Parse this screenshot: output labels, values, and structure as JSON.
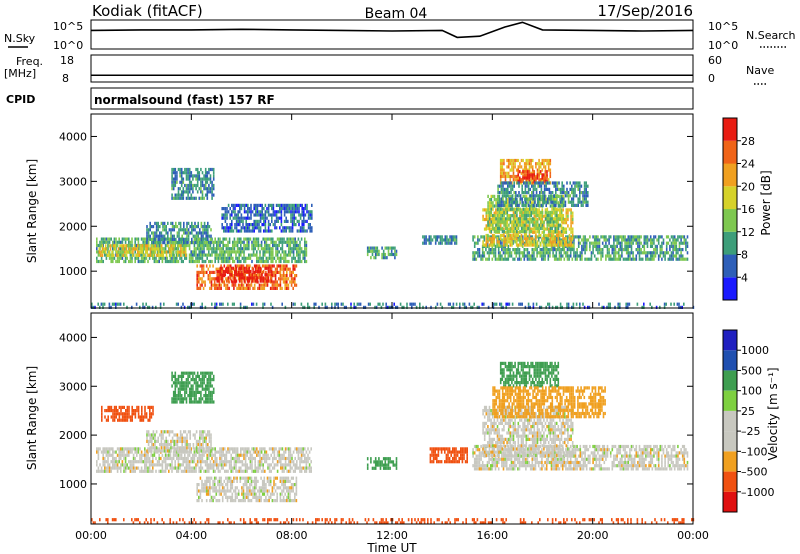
{
  "header": {
    "station": "Kodiak (fitACF)",
    "beam": "Beam 04",
    "date": "17/Sep/2016"
  },
  "summary": {
    "nsky_label": "N.Sky",
    "nsky_ticks": [
      "10^5",
      "10^0"
    ],
    "nsearch_label": "N.Search",
    "nsearch_ticks": [
      "10^5",
      "10^0"
    ],
    "freq_label": "Freq.",
    "freq_unit": "[MHz]",
    "freq_ticks": [
      "18",
      "8"
    ],
    "nave_label": "Nave",
    "nave_ticks": [
      "60",
      "0"
    ],
    "cpid_label": "CPID",
    "cpid_value": "normalsound (fast) 157 RF"
  },
  "colors": {
    "power_scale": [
      "#1a1aff",
      "#2e5fb8",
      "#3d9e7a",
      "#7ec850",
      "#d6d22a",
      "#f0a020",
      "#f06418",
      "#e81c12"
    ],
    "velocity_scale": [
      "#e01010",
      "#f05010",
      "#f0a020",
      "#c8c8c0",
      "#c8c8c0",
      "#7ed040",
      "#3e9e50",
      "#2050b0",
      "#2020c0"
    ]
  },
  "chart_data": [
    {
      "type": "heatmap",
      "name": "power",
      "ylabel": "Slant Range [km]",
      "xlabel": "Time UT",
      "x_ticks": [
        "00:00",
        "04:00",
        "08:00",
        "12:00",
        "16:00",
        "20:00",
        "00:00"
      ],
      "y_ticks": [
        "1000",
        "2000",
        "3000",
        "4000"
      ],
      "ylim": [
        180,
        4500
      ],
      "xlim_hours": [
        0,
        24
      ],
      "colorbar_label": "Power [dB]",
      "colorbar_ticks": [
        "4",
        "8",
        "12",
        "16",
        "20",
        "24",
        "28"
      ],
      "colorbar_range": [
        0,
        30
      ],
      "regions": [
        {
          "t0": 0.2,
          "t1": 8.6,
          "r0": 1250,
          "r1": 1750,
          "value": 11
        },
        {
          "t0": 0.3,
          "t1": 3.8,
          "r0": 1380,
          "r1": 1600,
          "value": 17
        },
        {
          "t0": 2.2,
          "t1": 4.8,
          "r0": 1650,
          "r1": 2100,
          "value": 9
        },
        {
          "t0": 3.2,
          "t1": 4.9,
          "r0": 2600,
          "r1": 3300,
          "value": 8
        },
        {
          "t0": 5.2,
          "t1": 8.8,
          "r0": 1900,
          "r1": 2500,
          "value": 6
        },
        {
          "t0": 4.2,
          "t1": 8.2,
          "r0": 650,
          "r1": 1150,
          "value": 24
        },
        {
          "t0": 5.0,
          "t1": 7.2,
          "r0": 750,
          "r1": 1100,
          "value": 28
        },
        {
          "t0": 11.0,
          "t1": 12.2,
          "r0": 1300,
          "r1": 1550,
          "value": 10
        },
        {
          "t0": 13.2,
          "t1": 14.6,
          "r0": 1600,
          "r1": 1800,
          "value": 8
        },
        {
          "t0": 15.2,
          "t1": 23.8,
          "r0": 1300,
          "r1": 1800,
          "value": 10
        },
        {
          "t0": 15.6,
          "t1": 19.2,
          "r0": 1600,
          "r1": 2400,
          "value": 18
        },
        {
          "t0": 15.8,
          "t1": 18.8,
          "r0": 1900,
          "r1": 2700,
          "value": 13
        },
        {
          "t0": 16.3,
          "t1": 18.3,
          "r0": 3000,
          "r1": 3500,
          "value": 20
        },
        {
          "t0": 17.0,
          "t1": 18.2,
          "r0": 3000,
          "r1": 3250,
          "value": 27
        },
        {
          "t0": 16.2,
          "t1": 19.8,
          "r0": 2500,
          "r1": 3000,
          "value": 8
        },
        {
          "t0": 0.0,
          "t1": 24.0,
          "r0": 180,
          "r1": 300,
          "value": 7
        }
      ]
    },
    {
      "type": "heatmap",
      "name": "velocity",
      "ylabel": "Slant Range [km]",
      "xlabel": "Time UT",
      "x_ticks": [
        "00:00",
        "04:00",
        "08:00",
        "12:00",
        "16:00",
        "20:00",
        "00:00"
      ],
      "y_ticks": [
        "1000",
        "2000",
        "3000",
        "4000"
      ],
      "ylim": [
        180,
        4500
      ],
      "xlim_hours": [
        0,
        24
      ],
      "colorbar_label": "Velocity [m s⁻¹]",
      "colorbar_ticks": [
        "1000",
        "500",
        "100",
        "25",
        "–25",
        "–100",
        "–500",
        "–1000"
      ],
      "regions": [
        {
          "t0": 0.2,
          "t1": 8.8,
          "r0": 1250,
          "r1": 1750,
          "value": 0
        },
        {
          "t0": 2.2,
          "t1": 4.8,
          "r0": 1650,
          "r1": 2100,
          "value": 0
        },
        {
          "t0": 4.2,
          "t1": 8.2,
          "r0": 650,
          "r1": 1150,
          "value": 0
        },
        {
          "t0": 3.2,
          "t1": 4.9,
          "r0": 2700,
          "r1": 3300,
          "value": 150
        },
        {
          "t0": 0.4,
          "t1": 2.5,
          "r0": 2300,
          "r1": 2600,
          "value": -200
        },
        {
          "t0": 11.0,
          "t1": 12.2,
          "r0": 1300,
          "r1": 1550,
          "value": 150
        },
        {
          "t0": 13.5,
          "t1": 15.0,
          "r0": 1450,
          "r1": 1750,
          "value": -300
        },
        {
          "t0": 15.2,
          "t1": 23.8,
          "r0": 1300,
          "r1": 1800,
          "value": 0
        },
        {
          "t0": 15.6,
          "t1": 19.2,
          "r0": 1600,
          "r1": 2600,
          "value": 0
        },
        {
          "t0": 16.3,
          "t1": 18.6,
          "r0": 3000,
          "r1": 3500,
          "value": 200
        },
        {
          "t0": 16.0,
          "t1": 20.5,
          "r0": 2400,
          "r1": 3000,
          "value": -60
        },
        {
          "t0": 0.0,
          "t1": 24.0,
          "r0": 180,
          "r1": 300,
          "value": -150
        }
      ]
    },
    {
      "type": "line",
      "name": "nsky",
      "x_hours": [
        0,
        2,
        4,
        6,
        8,
        10,
        12,
        14,
        14.6,
        15.5,
        16.5,
        17.2,
        18,
        20,
        22,
        24
      ],
      "y_log10": [
        3.2,
        3.3,
        3.3,
        3.4,
        3.3,
        3.2,
        3.1,
        3.2,
        2.0,
        2.2,
        3.8,
        4.6,
        3.3,
        3.2,
        3.1,
        3.2
      ]
    },
    {
      "type": "line",
      "name": "frequency",
      "x_hours": [
        0,
        24
      ],
      "y": [
        10.5,
        10.5
      ],
      "ylim": [
        8,
        18
      ]
    }
  ]
}
